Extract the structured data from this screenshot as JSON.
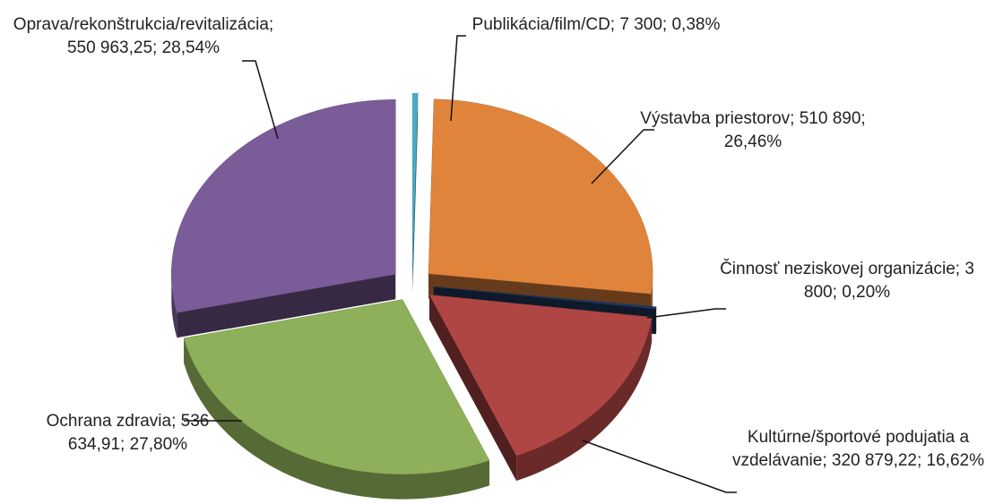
{
  "chart_data": {
    "type": "pie",
    "categories": [
      "Publikácia/film/CD",
      "Výstavba priestorov",
      "Činnosť neziskovej organizácie",
      "Kultúrne/športové podujatia a vzdelávanie",
      "Ochrana zdravia",
      "Oprava/rekonštrukcia/revitalizácia"
    ],
    "values": [
      7300,
      510890,
      3800,
      320879.22,
      536634.91,
      550963.25
    ],
    "value_labels": [
      "7 300",
      "510 890",
      "3 800",
      "320 879,22",
      "536 634,91",
      "550 963,25"
    ],
    "percents": [
      0.38,
      26.46,
      0.2,
      16.62,
      27.8,
      28.54
    ],
    "percent_labels": [
      "0,38%",
      "26,46%",
      "0,20%",
      "16,62%",
      "27,80%",
      "28,54%"
    ],
    "label_separator": "; ",
    "colors": [
      "#4bacc6",
      "#e0843c",
      "#1f3a5f",
      "#b04644",
      "#8fb05a",
      "#7a5c98"
    ]
  }
}
